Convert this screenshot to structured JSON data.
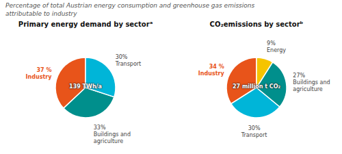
{
  "title": "Percentage of total Austrian energy consumption and greenhouse gas emissions\nattributable to industry",
  "chart_data": [
    {
      "type": "pie",
      "title": "Primary energy demand by sectorᵃ",
      "categories": [
        "Industry",
        "Buildings and agriculture",
        "Transport"
      ],
      "values": [
        37,
        33,
        30
      ],
      "value_labels": [
        "37 %",
        "33%",
        "30%"
      ],
      "colors": [
        "#E8541A",
        "#008F8C",
        "#00B5D8"
      ],
      "data_labels": true,
      "annotations": [
        "139 TWh/a"
      ]
    },
    {
      "type": "pie",
      "title": "CO₂emissions by sectorᵇ",
      "categories": [
        "Industry",
        "Transport",
        "Buildings and agriculture",
        "Energy"
      ],
      "values": [
        34,
        30,
        27,
        9
      ],
      "value_labels": [
        "34 %",
        "30%",
        "27%",
        "9%"
      ],
      "colors": [
        "#E8541A",
        "#00B5D8",
        "#008F8C",
        "#F5C400"
      ],
      "data_labels": true,
      "annotations": [
        "27 million t CO₂"
      ]
    }
  ]
}
